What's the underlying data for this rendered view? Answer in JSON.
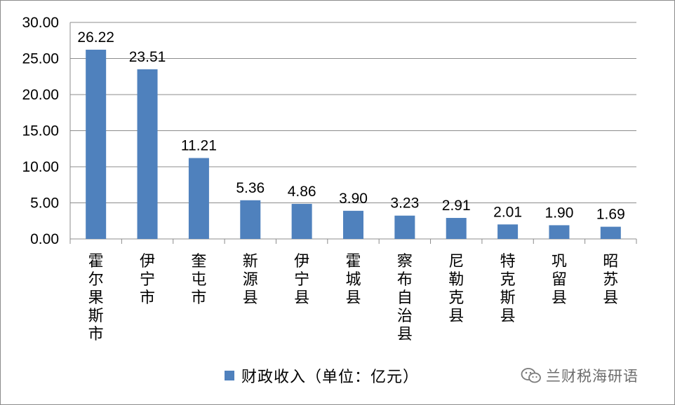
{
  "chart_data": {
    "type": "bar",
    "categories": [
      "霍尔果斯市",
      "伊宁市",
      "奎屯市",
      "新源县",
      "伊宁县",
      "霍城县",
      "察布自治县",
      "尼勒克县",
      "特克斯县",
      "巩留县",
      "昭苏县"
    ],
    "series": [
      {
        "name": "财政收入（单位：亿元）",
        "values": [
          26.22,
          23.51,
          11.21,
          5.36,
          4.86,
          3.9,
          3.23,
          2.91,
          2.01,
          1.9,
          1.69
        ],
        "labels": [
          "26.22",
          "23.51",
          "11.21",
          "5.36",
          "4.86",
          "3.90",
          "3.23",
          "2.91",
          "2.01",
          "1.90",
          "1.69"
        ]
      }
    ],
    "ylim": [
      0,
      30
    ],
    "yticks": [
      "0.00",
      "5.00",
      "10.00",
      "15.00",
      "20.00",
      "25.00",
      "30.00"
    ],
    "grid": true,
    "legend_position": "bottom",
    "bar_color": "#4f81bd"
  },
  "legend": {
    "label": "财政收入（单位：亿元）"
  },
  "watermark": {
    "text": "兰财税海研语",
    "icon": "wechat-icon"
  }
}
